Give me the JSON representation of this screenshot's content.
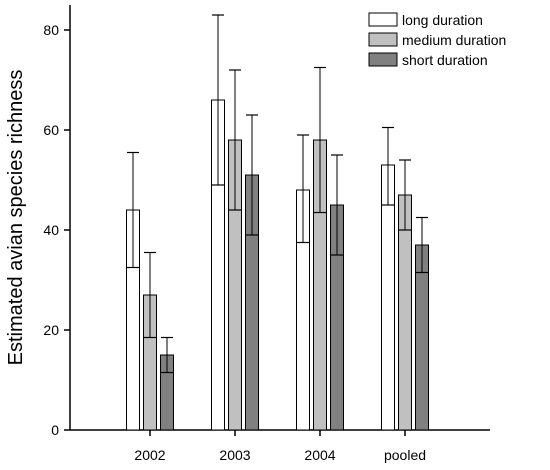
{
  "chart_data": {
    "type": "bar",
    "title": "",
    "xlabel": "",
    "ylabel": "Estimated avian species richness",
    "ylim": [
      0,
      85
    ],
    "yticks": [
      0,
      20,
      40,
      60,
      80
    ],
    "categories": [
      "2002",
      "2003",
      "2004",
      "pooled"
    ],
    "grid": false,
    "legend_position": "top-right",
    "error_bars": true,
    "series": [
      {
        "name": "long duration",
        "color": "#ffffff",
        "values": [
          44,
          66,
          48,
          53
        ],
        "err_low": [
          32.5,
          49,
          37.5,
          45
        ],
        "err_high": [
          55.5,
          83,
          59,
          60.5
        ]
      },
      {
        "name": "medium duration",
        "color": "#c0c0c0",
        "values": [
          27,
          58,
          58,
          47
        ],
        "err_low": [
          18.5,
          44,
          43.5,
          40
        ],
        "err_high": [
          35.5,
          72,
          72.5,
          54
        ]
      },
      {
        "name": "short duration",
        "color": "#808080",
        "values": [
          15,
          51,
          45,
          37
        ],
        "err_low": [
          11.5,
          39,
          35,
          31.5
        ],
        "err_high": [
          18.5,
          63,
          55,
          42.5
        ]
      }
    ]
  }
}
